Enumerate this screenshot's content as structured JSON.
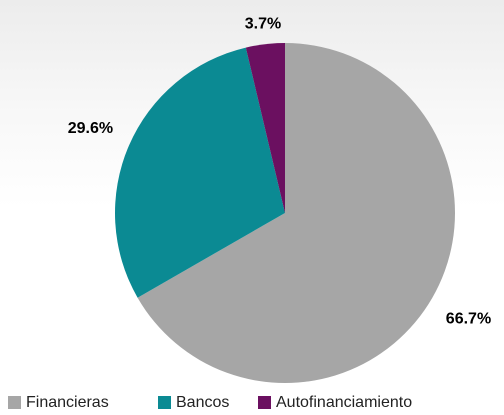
{
  "chart_data": {
    "type": "pie",
    "categories": [
      "Financieras",
      "Bancos",
      "Autofinanciamiento"
    ],
    "values": [
      66.7,
      29.6,
      3.7
    ],
    "value_labels": [
      "66.7%",
      "29.6%",
      "3.7%"
    ],
    "colors": [
      "#a6a6a6",
      "#0b8a93",
      "#6b1060"
    ],
    "legend": "bottom"
  }
}
